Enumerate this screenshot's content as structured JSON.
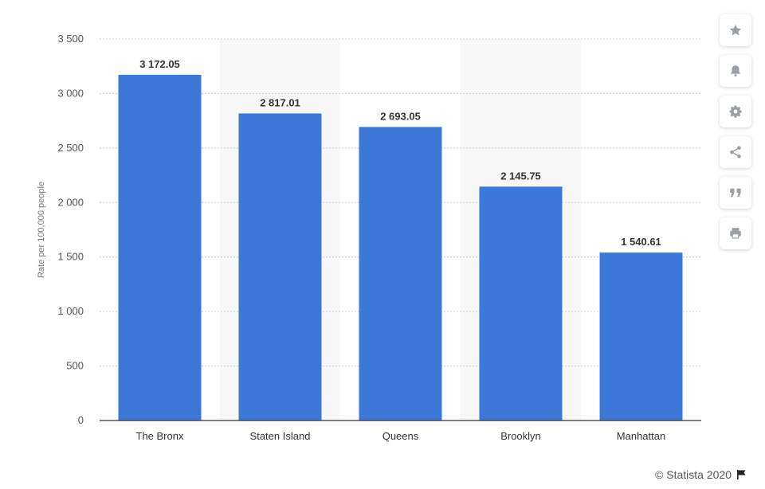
{
  "chart_data": {
    "type": "bar",
    "categories": [
      "The Bronx",
      "Staten Island",
      "Queens",
      "Brooklyn",
      "Manhattan"
    ],
    "values": [
      3172.05,
      2817.01,
      2693.05,
      2145.75,
      1540.61
    ],
    "value_labels": [
      "3 172.05",
      "2 817.01",
      "2 693.05",
      "2 145.75",
      "1 540.61"
    ],
    "ylabel": "Rate per 100,000 people",
    "ylim": [
      0,
      3500
    ],
    "yticks": [
      0,
      500,
      1000,
      1500,
      2000,
      2500,
      3000,
      3500
    ],
    "ytick_labels": [
      "0",
      "500",
      "1 000",
      "1 500",
      "2 000",
      "2 500",
      "3 000",
      "3 500"
    ],
    "grid": true,
    "bar_color": "#3c78d8"
  },
  "toolbar": {
    "buttons": [
      {
        "name": "favorite-button",
        "icon": "star-icon"
      },
      {
        "name": "notification-button",
        "icon": "bell-icon"
      },
      {
        "name": "settings-button",
        "icon": "gear-icon"
      },
      {
        "name": "share-button",
        "icon": "share-icon"
      },
      {
        "name": "cite-button",
        "icon": "quote-icon"
      },
      {
        "name": "print-button",
        "icon": "printer-icon"
      }
    ],
    "icon_color": "#9aa0a6"
  },
  "credit": {
    "text": "© Statista 2020",
    "icon": "flag-icon"
  }
}
